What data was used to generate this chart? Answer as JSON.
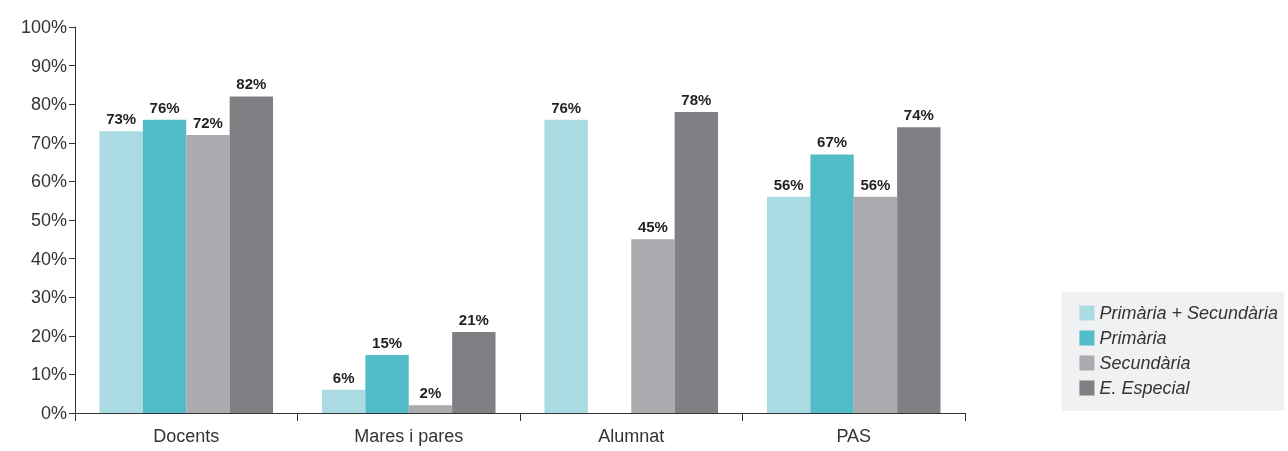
{
  "chart_data": {
    "type": "bar",
    "categories": [
      "Docents",
      "Mares i pares",
      "Alumnat",
      "PAS"
    ],
    "series": [
      {
        "name": "Primària + Secundària",
        "color": "#aadbe2",
        "values": [
          73,
          6,
          76,
          56
        ],
        "value_labels": [
          "73%",
          "6%",
          "76%",
          "56%"
        ]
      },
      {
        "name": "Primària",
        "color": "#52bcc9",
        "values": [
          76,
          15,
          null,
          67
        ],
        "value_labels": [
          "76%",
          "15%",
          null,
          "67%"
        ]
      },
      {
        "name": "Secundària",
        "color": "#aaabaf",
        "values": [
          72,
          2,
          45,
          56
        ],
        "value_labels": [
          "72%",
          "2%",
          "45%",
          "56%"
        ]
      },
      {
        "name": "E. Especial",
        "color": "#7f8084",
        "values": [
          82,
          21,
          78,
          74
        ],
        "value_labels": [
          "82%",
          "21%",
          "78%",
          "74%"
        ]
      }
    ],
    "ylim": [
      0,
      100
    ],
    "yticks": [
      {
        "value": 0,
        "label": "0%"
      },
      {
        "value": 10,
        "label": "10%"
      },
      {
        "value": 20,
        "label": "20%"
      },
      {
        "value": 30,
        "label": "30%"
      },
      {
        "value": 40,
        "label": "40%"
      },
      {
        "value": 50,
        "label": "50%"
      },
      {
        "value": 60,
        "label": "60%"
      },
      {
        "value": 70,
        "label": "70%"
      },
      {
        "value": 80,
        "label": "80%"
      },
      {
        "value": 90,
        "label": "90%"
      },
      {
        "value": 100,
        "label": "100%"
      }
    ],
    "grid": false,
    "legend": "bottom right"
  }
}
